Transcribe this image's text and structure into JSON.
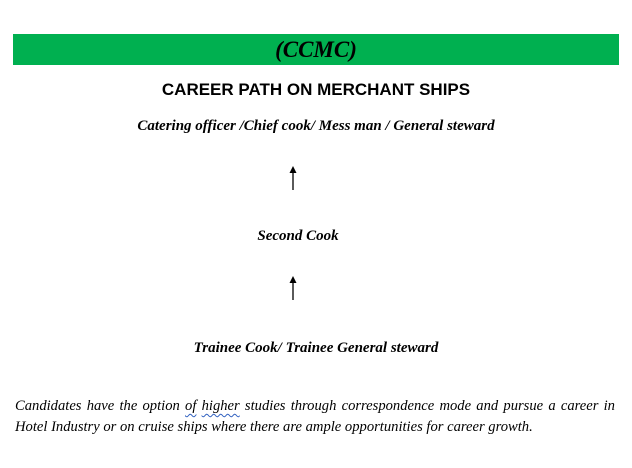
{
  "banner": {
    "title": "(CCMC)",
    "background_color": "#00b050"
  },
  "heading": "CAREER PATH ON MERCHANT SHIPS",
  "career_levels": [
    {
      "label": "Catering officer /Chief cook/ Mess man / General steward"
    },
    {
      "label": "Second Cook"
    },
    {
      "label": "Trainee Cook/ Trainee General steward"
    }
  ],
  "arrows": [
    {
      "icon": "arrow-up-icon"
    },
    {
      "icon": "arrow-up-icon"
    }
  ],
  "paragraph": {
    "part1": "Candidates have the option ",
    "of_word": "of",
    "space": " ",
    "higher_word": "higher",
    "part2": " studies through correspondence mode and pursue a career in Hotel Industry or on cruise ships where there are ample opportunities for career growth."
  }
}
